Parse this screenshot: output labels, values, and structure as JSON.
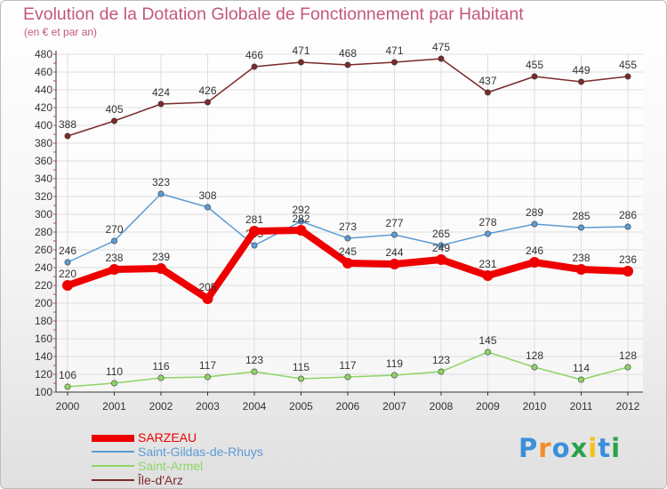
{
  "chart_data": {
    "type": "line",
    "title": "Evolution de la Dotation Globale de Fonctionnement par Habitant",
    "subtitle": "(en € et par an)",
    "xlabel": "",
    "ylabel": "",
    "categories": [
      "2000",
      "2001",
      "2002",
      "2003",
      "2004",
      "2005",
      "2006",
      "2007",
      "2008",
      "2009",
      "2010",
      "2011",
      "2012"
    ],
    "ylim": [
      100,
      480
    ],
    "yticks": [
      100,
      120,
      140,
      160,
      180,
      200,
      220,
      240,
      260,
      280,
      300,
      320,
      340,
      360,
      380,
      400,
      420,
      440,
      460,
      480
    ],
    "grid": true,
    "legend_position": "bottom-left",
    "series": [
      {
        "name": "SARZEAU",
        "color": "#ee0000",
        "values": [
          220,
          238,
          239,
          205,
          281,
          282,
          245,
          244,
          249,
          231,
          246,
          238,
          236
        ]
      },
      {
        "name": "Saint-Gildas-de-Rhuys",
        "color": "#5b9bd5",
        "values": [
          246,
          270,
          323,
          308,
          265,
          292,
          273,
          277,
          265,
          278,
          289,
          285,
          286
        ]
      },
      {
        "name": "Saint-Armel",
        "color": "#8ed466",
        "values": [
          106,
          110,
          116,
          117,
          123,
          115,
          117,
          119,
          123,
          145,
          128,
          114,
          128
        ]
      },
      {
        "name": "Île-d'Arz",
        "color": "#7a2a2a",
        "values": [
          388,
          405,
          424,
          426,
          466,
          471,
          468,
          471,
          475,
          437,
          455,
          449,
          455
        ]
      }
    ]
  },
  "legend": {
    "items": [
      {
        "label": "SARZEAU",
        "color": "#ee0000"
      },
      {
        "label": "Saint-Gildas-de-Rhuys",
        "color": "#5b9bd5"
      },
      {
        "label": "Saint-Armel",
        "color": "#8ed466"
      },
      {
        "label": "Île-d'Arz",
        "color": "#7a2a2a"
      }
    ]
  },
  "logo": {
    "letters": [
      "P",
      "r",
      "o",
      "x",
      "i",
      "t",
      "i"
    ],
    "colors": [
      "#3b8fd9",
      "#f28c28",
      "#3b8fd9",
      "#2aa24a",
      "#f2c21a",
      "#3b8fd9",
      "#2aa24a"
    ]
  }
}
